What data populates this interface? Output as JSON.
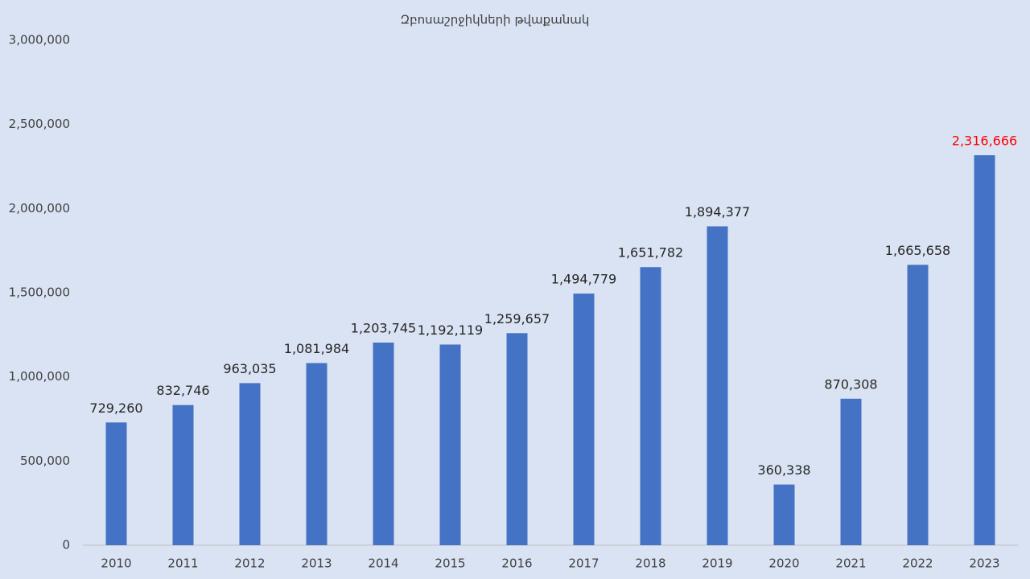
{
  "chart_data": {
    "type": "bar",
    "title": "Զբոսաշրջիկների թվաքանակ",
    "categories": [
      "2010",
      "2011",
      "2012",
      "2013",
      "2014",
      "2015",
      "2016",
      "2017",
      "2018",
      "2019",
      "2020",
      "2021",
      "2022",
      "2023"
    ],
    "values": [
      729260,
      832746,
      963035,
      1081984,
      1203745,
      1192119,
      1259657,
      1494779,
      1651782,
      1894377,
      360338,
      870308,
      1665658,
      2316666
    ],
    "value_labels": [
      "729,260",
      "832,746",
      "963,035",
      "1,081,984",
      "1,203,745",
      "1,192,119",
      "1,259,657",
      "1,494,779",
      "1,651,782",
      "1,894,377",
      "360,338",
      "870,308",
      "1,665,658",
      "2,316,666"
    ],
    "value_label_colors": [
      "#262626",
      "#262626",
      "#262626",
      "#262626",
      "#262626",
      "#262626",
      "#262626",
      "#262626",
      "#262626",
      "#262626",
      "#262626",
      "#262626",
      "#262626",
      "#ff0000"
    ],
    "color": "#4472c4",
    "ylim": [
      0,
      3000000
    ],
    "yticks": [
      0,
      {
        "value": 500000,
        "label": "500,000"
      },
      {
        "value": 1000000,
        "label": "1,000,000"
      },
      {
        "value": 1500000,
        "label": "1,500,000"
      },
      {
        "value": 2000000,
        "label": "2,000,000"
      },
      {
        "value": 2500000,
        "label": "2,500,000"
      },
      {
        "value": 3000000,
        "label": "3,000,000"
      }
    ],
    "grid": false
  }
}
